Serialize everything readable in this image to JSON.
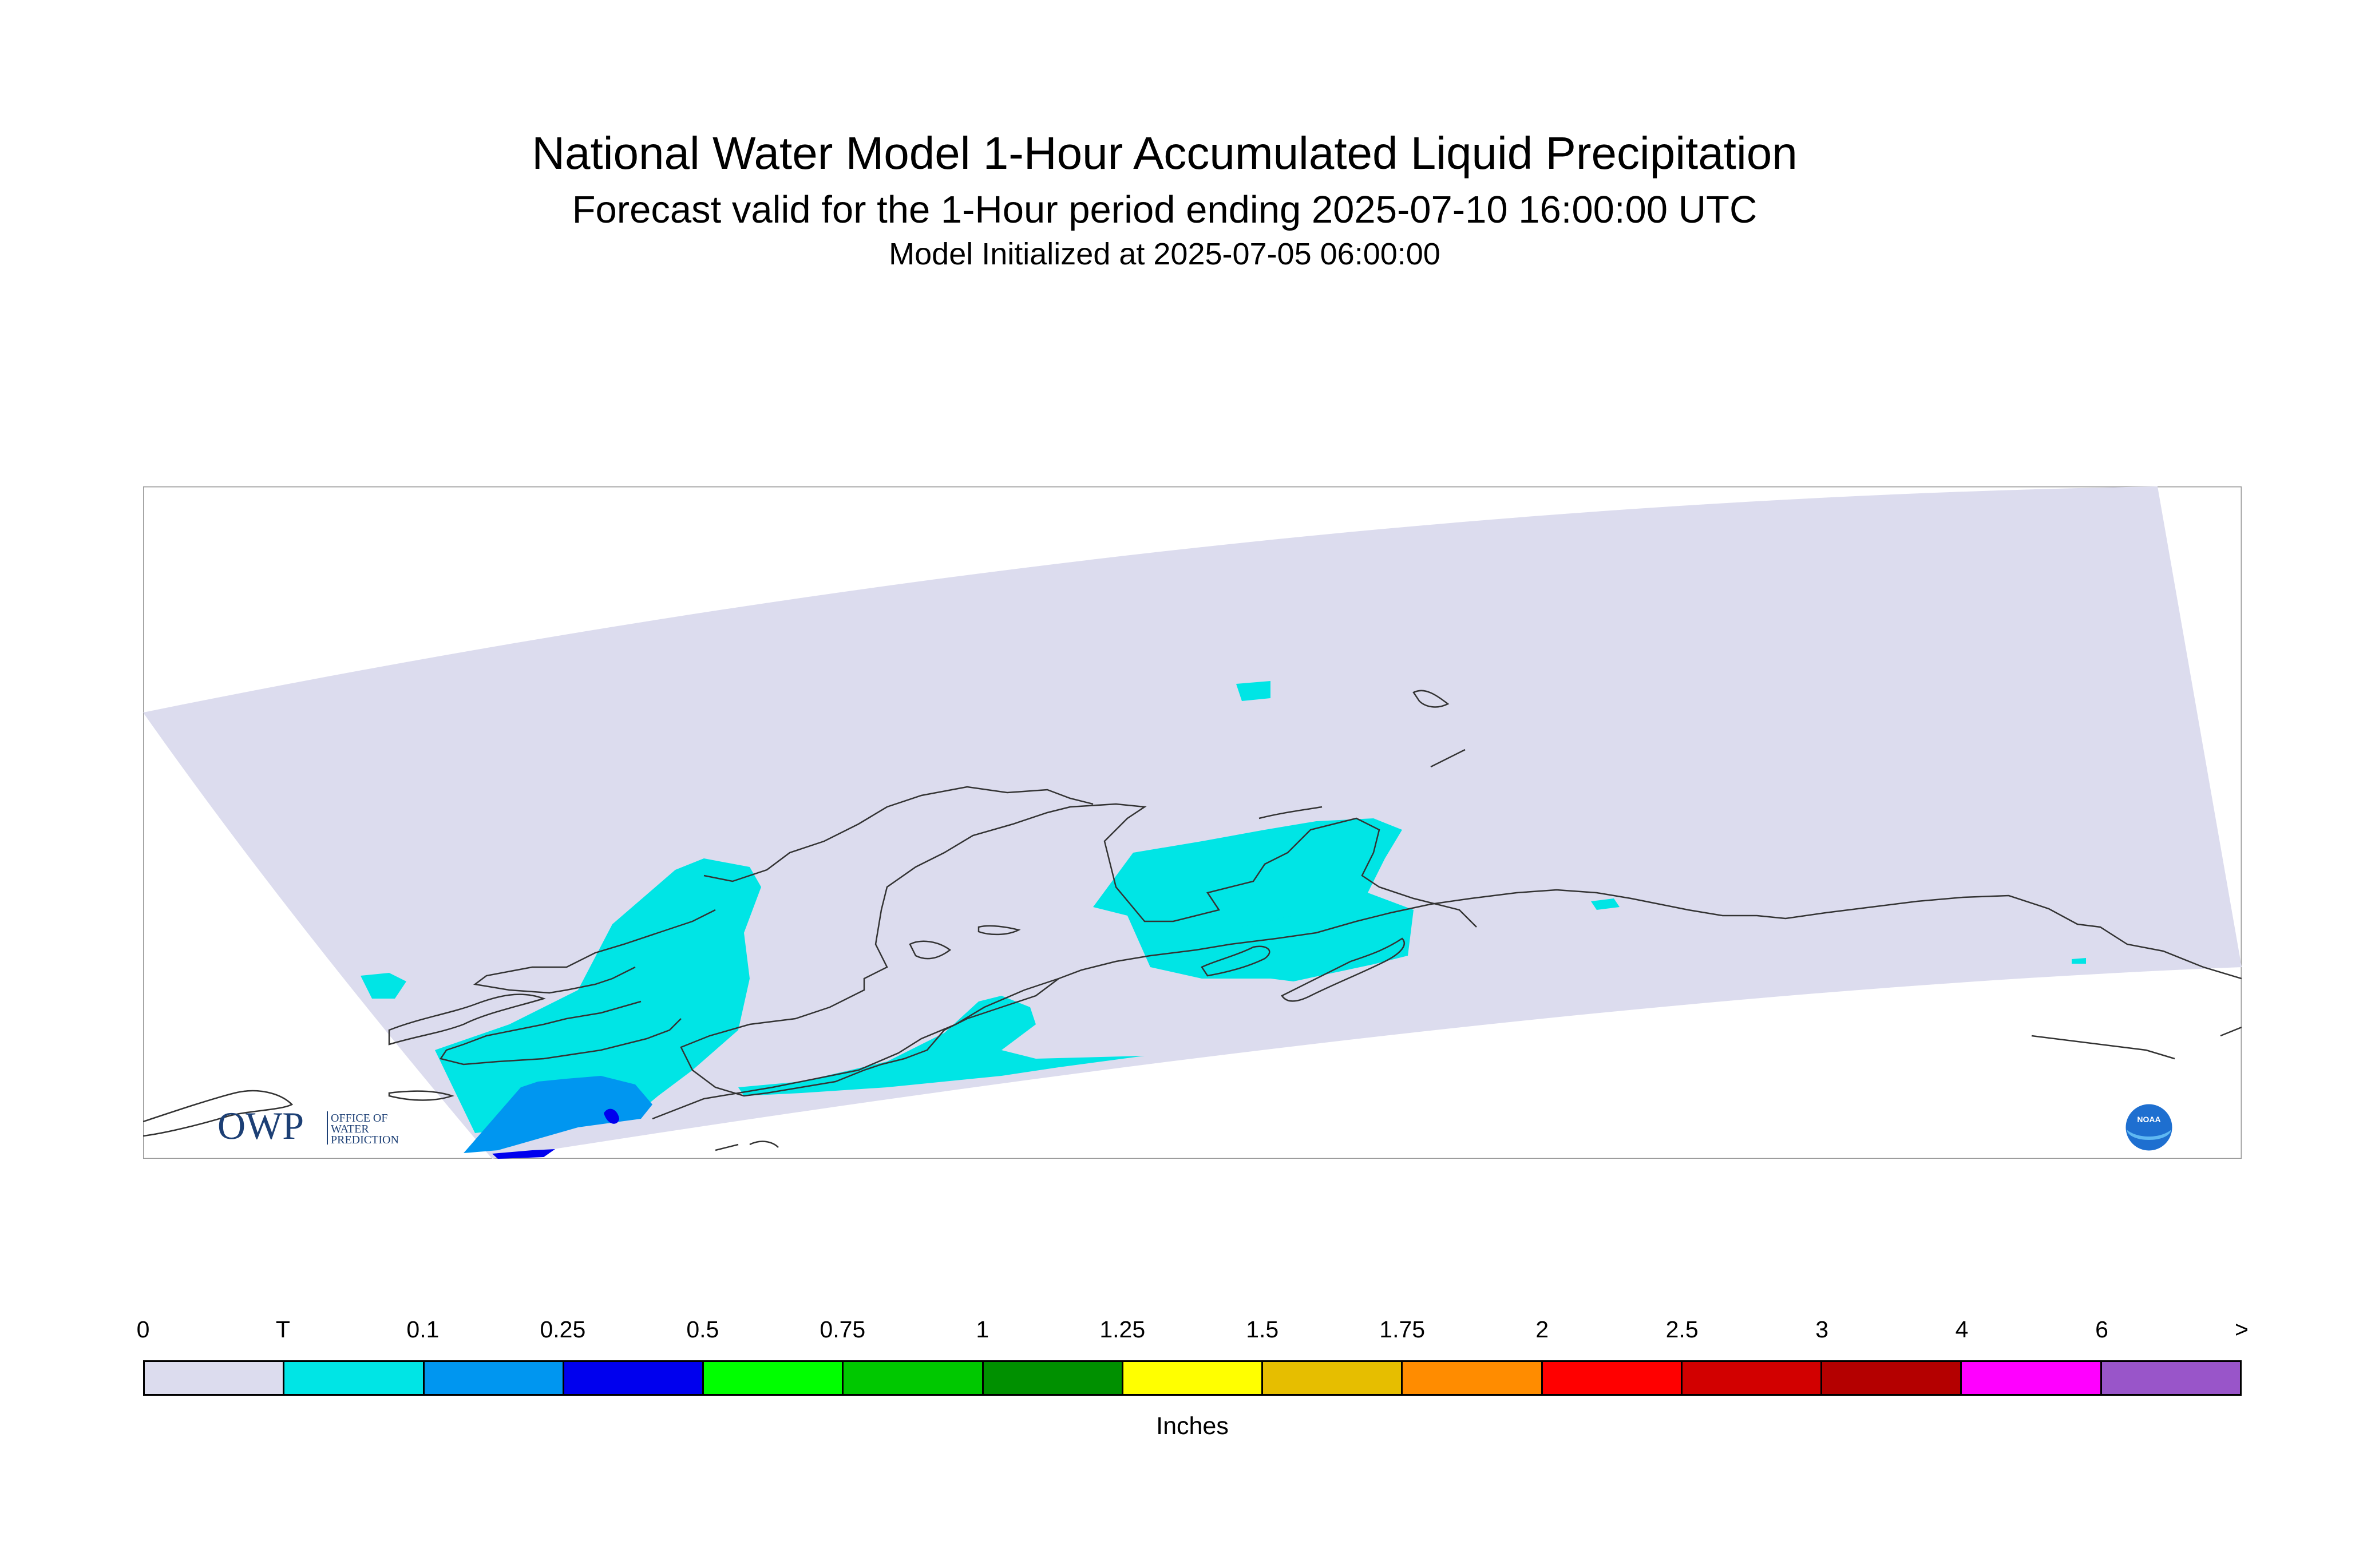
{
  "header": {
    "title": "National Water Model 1-Hour Accumulated Liquid Precipitation",
    "subtitle": "Forecast valid for the 1-Hour period ending 2025-07-10 16:00:00 UTC",
    "init": "Model Initialized at 2025-07-05 06:00:00"
  },
  "logos": {
    "owp_mark": "OWP",
    "owp_text": [
      "OFFICE OF",
      "WATER",
      "PREDICTION"
    ],
    "noaa_mark": "NOAA"
  },
  "legend": {
    "units": "Inches",
    "ticks": [
      "0",
      "T",
      "0.1",
      "0.25",
      "0.5",
      "0.75",
      "1",
      "1.25",
      "1.5",
      "1.75",
      "2",
      "2.5",
      "3",
      "4",
      "6",
      ">"
    ],
    "colors": [
      "#dcdcee",
      "#00e5e5",
      "#0096f0",
      "#0000ee",
      "#00ff00",
      "#00c800",
      "#009000",
      "#ffff00",
      "#e6be00",
      "#ff8c00",
      "#ff0000",
      "#d20000",
      "#b40000",
      "#ff00ff",
      "#9955c9"
    ]
  }
}
